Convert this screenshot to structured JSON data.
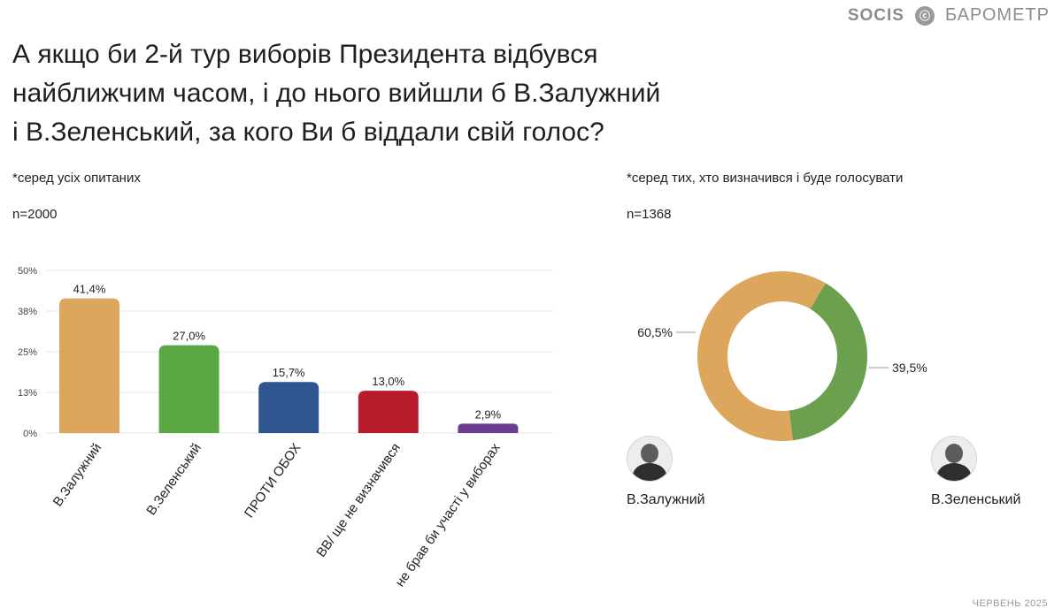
{
  "brand": {
    "socis": "SOCIS",
    "emblem": "ⓒ",
    "barometer": "БАРОМЕТР"
  },
  "title": {
    "line1": "А якщо би 2-й тур виборів Президента відбувся",
    "line2": "найближчим часом, і до нього вийшли б В.Залужний",
    "line3": "і В.Зеленський, за кого Ви б віддали свій голос?"
  },
  "left": {
    "note": "*серед усіх опитаних",
    "n": "n=2000"
  },
  "right": {
    "note": "*серед тих, хто визначився і буде голосувати",
    "n": "n=1368"
  },
  "people": [
    {
      "name": "В.Залужний",
      "icon": "portrait-icon"
    },
    {
      "name": "В.Зеленський",
      "icon": "portrait-icon"
    }
  ],
  "footer": "ЧЕРВЕНЬ 2025",
  "chart_data": [
    {
      "type": "bar",
      "categories": [
        "В.Залужний",
        "В.Зеленський",
        "ПРОТИ ОБОХ",
        "ВВ/ ще не визначився",
        "не брав би участі у виборах"
      ],
      "values": [
        41.4,
        27.0,
        15.7,
        13.0,
        2.9
      ],
      "value_labels": [
        "41,4%",
        "27,0%",
        "15,7%",
        "13,0%",
        "2,9%"
      ],
      "colors": [
        "#dca75c",
        "#5aa844",
        "#2f5591",
        "#b71c2c",
        "#6a3d8f"
      ],
      "yticks": [
        0,
        12.5,
        25,
        37.5,
        50
      ],
      "ytick_labels": [
        "0%",
        "13%",
        "25%",
        "38%",
        "50%"
      ],
      "ylim": [
        0,
        50
      ],
      "grid": true
    },
    {
      "type": "pie",
      "donut": true,
      "labels": [
        "В.Залужний",
        "В.Зеленський"
      ],
      "values": [
        60.5,
        39.5
      ],
      "value_labels": [
        "60,5%",
        "39,5%"
      ],
      "colors": [
        "#dca75c",
        "#6ba04f"
      ]
    }
  ]
}
